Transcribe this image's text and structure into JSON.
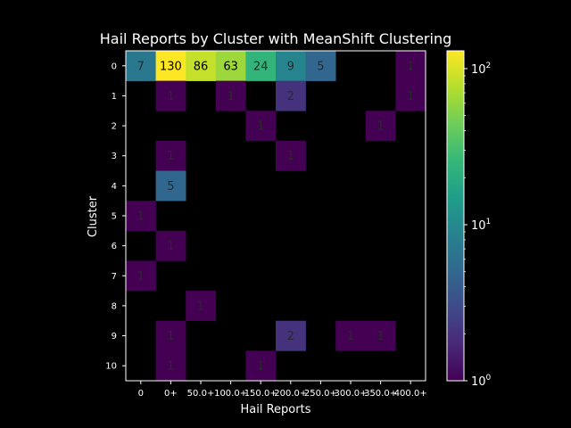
{
  "chart_data": {
    "type": "heatmap",
    "title": "Hail Reports by Cluster with MeanShift Clustering",
    "xlabel": "Hail Reports",
    "ylabel": "Cluster",
    "x_categories": [
      "0",
      "0+",
      "50.0+",
      "100.0+",
      "150.0+",
      "200.0+",
      "250.0+",
      "300.0+",
      "350.0+",
      "400.0+"
    ],
    "y_categories": [
      "0",
      "1",
      "2",
      "3",
      "4",
      "5",
      "6",
      "7",
      "8",
      "9",
      "10"
    ],
    "values": [
      [
        7,
        130,
        86,
        63,
        24,
        9,
        5,
        null,
        null,
        1
      ],
      [
        null,
        1,
        null,
        1,
        null,
        2,
        null,
        null,
        null,
        1
      ],
      [
        null,
        null,
        null,
        null,
        1,
        null,
        null,
        null,
        1,
        null
      ],
      [
        null,
        1,
        null,
        null,
        null,
        1,
        null,
        null,
        null,
        null
      ],
      [
        null,
        5,
        null,
        null,
        null,
        null,
        null,
        null,
        null,
        null
      ],
      [
        1,
        null,
        null,
        null,
        null,
        null,
        null,
        null,
        null,
        null
      ],
      [
        null,
        1,
        null,
        null,
        null,
        null,
        null,
        null,
        null,
        null
      ],
      [
        1,
        null,
        null,
        null,
        null,
        null,
        null,
        null,
        null,
        null
      ],
      [
        null,
        null,
        1,
        null,
        null,
        null,
        null,
        null,
        null,
        null
      ],
      [
        null,
        1,
        null,
        null,
        null,
        2,
        null,
        1,
        1,
        null
      ],
      [
        null,
        1,
        null,
        null,
        1,
        null,
        null,
        null,
        null,
        null
      ]
    ],
    "colorscale": "viridis",
    "color_scale_type": "log",
    "color_range": [
      1,
      130
    ],
    "colorbar_ticks": [
      {
        "value": 1,
        "base": "10",
        "exp": "0"
      },
      {
        "value": 10,
        "base": "10",
        "exp": "1"
      },
      {
        "value": 100,
        "base": "10",
        "exp": "2"
      }
    ],
    "empty_cell_color": "#000000",
    "background_color": "#000000",
    "text_color": "#ffffff"
  }
}
